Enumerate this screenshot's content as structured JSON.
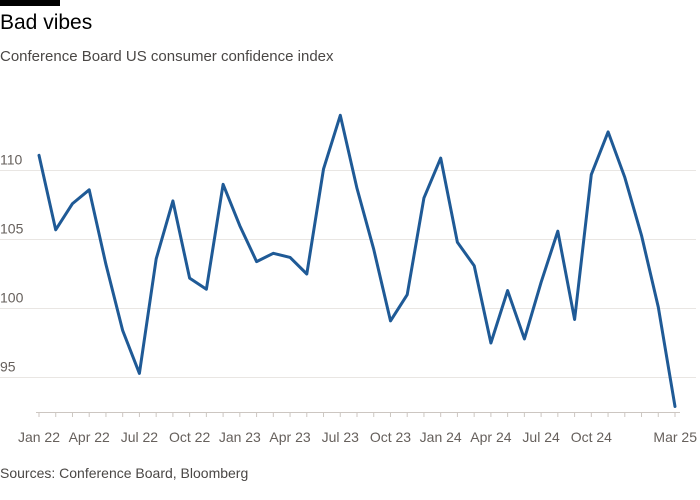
{
  "title": "Bad vibes",
  "subtitle": "Conference Board US consumer confidence index",
  "source": "Sources: Conference Board, Bloomberg",
  "colors": {
    "line": "#1f5a96",
    "grid": "#e9e6e3",
    "tick_text": "#66605c",
    "top_rule": "#000000"
  },
  "chart_data": {
    "type": "line",
    "grid": true,
    "ylim": [
      92.5,
      115
    ],
    "y_ticks": [
      95,
      100,
      105,
      110
    ],
    "y_tick_labels": [
      "95",
      "100",
      "105",
      "110"
    ],
    "x_tick_labels": [
      "Jan 22",
      "Apr 22",
      "Jul 22",
      "Oct 22",
      "Jan 23",
      "Apr 23",
      "Jul 23",
      "Oct 23",
      "Jan 24",
      "Apr 24",
      "Jul 24",
      "Oct 24",
      "Mar 25"
    ],
    "x_tick_index": [
      0,
      3,
      6,
      9,
      12,
      15,
      18,
      21,
      24,
      27,
      30,
      33,
      38
    ],
    "x": [
      "Jan 22",
      "Feb 22",
      "Mar 22",
      "Apr 22",
      "May 22",
      "Jun 22",
      "Jul 22",
      "Aug 22",
      "Sep 22",
      "Oct 22",
      "Nov 22",
      "Dec 22",
      "Jan 23",
      "Feb 23",
      "Mar 23",
      "Apr 23",
      "May 23",
      "Jun 23",
      "Jul 23",
      "Aug 23",
      "Sep 23",
      "Oct 23",
      "Nov 23",
      "Dec 23",
      "Jan 24",
      "Feb 24",
      "Mar 24",
      "Apr 24",
      "May 24",
      "Jun 24",
      "Jul 24",
      "Aug 24",
      "Sep 24",
      "Oct 24",
      "Nov 24",
      "Dec 24",
      "Jan 25",
      "Feb 25",
      "Mar 25"
    ],
    "series": [
      {
        "values": [
          111.1,
          105.7,
          107.6,
          108.6,
          103.2,
          98.4,
          95.3,
          103.6,
          107.8,
          102.2,
          101.4,
          109.0,
          106.0,
          103.4,
          104.0,
          103.7,
          102.5,
          110.1,
          114.0,
          108.7,
          104.3,
          99.1,
          101.0,
          108.0,
          110.9,
          104.8,
          103.1,
          97.5,
          101.3,
          97.8,
          101.9,
          105.6,
          99.2,
          109.7,
          112.8,
          109.5,
          105.3,
          100.1,
          92.9
        ]
      }
    ]
  }
}
